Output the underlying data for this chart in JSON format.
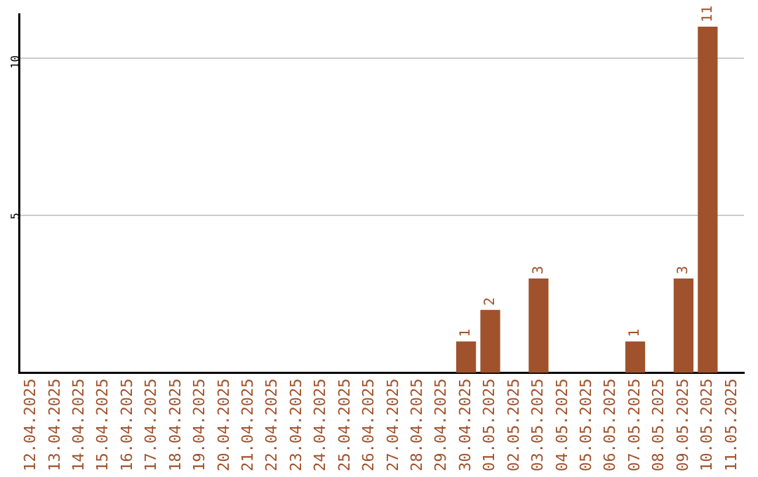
{
  "chart_data": {
    "type": "bar",
    "categories": [
      "12.04.2025",
      "13.04.2025",
      "14.04.2025",
      "15.04.2025",
      "16.04.2025",
      "17.04.2025",
      "18.04.2025",
      "19.04.2025",
      "20.04.2025",
      "21.04.2025",
      "22.04.2025",
      "23.04.2025",
      "24.04.2025",
      "25.04.2025",
      "26.04.2025",
      "27.04.2025",
      "28.04.2025",
      "29.04.2025",
      "30.04.2025",
      "01.05.2025",
      "02.05.2025",
      "03.05.2025",
      "04.05.2025",
      "05.05.2025",
      "06.05.2025",
      "07.05.2025",
      "08.05.2025",
      "09.05.2025",
      "10.05.2025",
      "11.05.2025"
    ],
    "values": [
      0,
      0,
      0,
      0,
      0,
      0,
      0,
      0,
      0,
      0,
      0,
      0,
      0,
      0,
      0,
      0,
      0,
      0,
      1,
      2,
      0,
      3,
      0,
      0,
      0,
      1,
      0,
      3,
      11,
      0
    ],
    "value_labels": [
      null,
      null,
      null,
      null,
      null,
      null,
      null,
      null,
      null,
      null,
      null,
      null,
      null,
      null,
      null,
      null,
      null,
      null,
      "1",
      "2",
      null,
      "3",
      null,
      null,
      null,
      "1",
      null,
      "3",
      "11",
      null
    ],
    "color": "#a0522d",
    "ylim": [
      0,
      11.4
    ],
    "yticks": [
      5,
      10
    ],
    "grid": "y",
    "legend": false
  }
}
